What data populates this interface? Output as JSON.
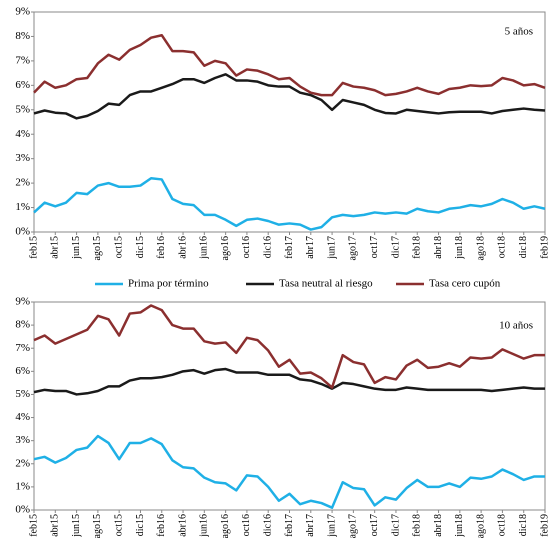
{
  "chart_data": [
    {
      "type": "line",
      "categories": [
        "feb15",
        null,
        "abr15",
        null,
        "jun15",
        null,
        "ago15",
        null,
        "oct15",
        null,
        "dic15",
        null,
        "feb16",
        null,
        "abr16",
        null,
        "jun16",
        null,
        "ago16",
        null,
        "oct16",
        null,
        "dic16",
        null,
        "feb17",
        null,
        "abr17",
        null,
        "jun17",
        null,
        "ago17",
        null,
        "oct17",
        null,
        "dic17",
        null,
        "feb18",
        null,
        "abr18",
        null,
        "jun18",
        null,
        "ago18",
        null,
        "oct18",
        null,
        "dic18",
        null,
        "feb19"
      ],
      "series": [
        {
          "name": "Prima por término",
          "color": "#1fb0e6",
          "values": [
            0.8,
            1.2,
            1.05,
            1.2,
            1.6,
            1.55,
            1.9,
            2.0,
            1.85,
            1.85,
            1.9,
            2.2,
            2.15,
            1.35,
            1.15,
            1.1,
            0.7,
            0.7,
            0.5,
            0.25,
            0.5,
            0.55,
            0.45,
            0.3,
            0.35,
            0.3,
            0.1,
            0.2,
            0.6,
            0.7,
            0.65,
            0.7,
            0.8,
            0.75,
            0.8,
            0.75,
            0.95,
            0.85,
            0.8,
            0.95,
            1.0,
            1.1,
            1.05,
            1.15,
            1.35,
            1.2,
            0.95,
            1.05,
            0.95
          ]
        },
        {
          "name": "Tasa neutral al riesgo",
          "color": "#1a1a1a",
          "values": [
            4.85,
            4.97,
            4.88,
            4.85,
            4.65,
            4.75,
            4.95,
            5.25,
            5.2,
            5.6,
            5.75,
            5.75,
            5.9,
            6.05,
            6.25,
            6.25,
            6.1,
            6.3,
            6.45,
            6.2,
            6.2,
            6.15,
            6.0,
            5.95,
            5.95,
            5.7,
            5.6,
            5.4,
            5.0,
            5.4,
            5.3,
            5.2,
            5.0,
            4.87,
            4.85,
            5.0,
            4.95,
            4.9,
            4.85,
            4.9,
            4.92,
            4.92,
            4.92,
            4.85,
            4.95,
            5.0,
            5.05,
            5.0,
            4.97
          ]
        },
        {
          "name": "Tasa cero cupón",
          "color": "#8b2f2f",
          "values": [
            5.7,
            6.15,
            5.9,
            6.0,
            6.25,
            6.3,
            6.9,
            7.25,
            7.05,
            7.45,
            7.65,
            7.95,
            8.05,
            7.4,
            7.4,
            7.35,
            6.8,
            7.0,
            6.9,
            6.4,
            6.65,
            6.6,
            6.45,
            6.25,
            6.3,
            5.95,
            5.7,
            5.6,
            5.6,
            6.1,
            5.95,
            5.9,
            5.8,
            5.6,
            5.65,
            5.75,
            5.9,
            5.75,
            5.65,
            5.85,
            5.9,
            6.0,
            5.97,
            6.0,
            6.3,
            6.2,
            6.0,
            6.05,
            5.9
          ]
        }
      ],
      "annotation": "5 años",
      "ylim": [
        0,
        9
      ],
      "yticks": [
        {
          "value": 0,
          "label": "0%"
        },
        {
          "value": 1,
          "label": "1%"
        },
        {
          "value": 2,
          "label": "2%"
        },
        {
          "value": 3,
          "label": "3%"
        },
        {
          "value": 4,
          "label": "4%"
        },
        {
          "value": 5,
          "label": "5%"
        },
        {
          "value": 6,
          "label": "6%"
        },
        {
          "value": 7,
          "label": "7%"
        },
        {
          "value": 8,
          "label": "8%"
        },
        {
          "value": 9,
          "label": "9%"
        }
      ],
      "legend": "bottom"
    },
    {
      "type": "line",
      "categories": [
        "feb15",
        null,
        "abr15",
        null,
        "jun15",
        null,
        "ago15",
        null,
        "oct15",
        null,
        "dic15",
        null,
        "feb16",
        null,
        "abr16",
        null,
        "jun16",
        null,
        "ago16",
        null,
        "oct16",
        null,
        "dic16",
        null,
        "feb17",
        null,
        "abr17",
        null,
        "jun17",
        null,
        "ago17",
        null,
        "oct17",
        null,
        "dic17",
        null,
        "feb18",
        null,
        "abr18",
        null,
        "jun18",
        null,
        "ago18",
        null,
        "oct18",
        null,
        "dic18",
        null,
        "feb19"
      ],
      "series": [
        {
          "color": "#1fb0e6",
          "values": [
            2.2,
            2.3,
            2.05,
            2.25,
            2.6,
            2.7,
            3.2,
            2.9,
            2.2,
            2.9,
            2.9,
            3.1,
            2.85,
            2.15,
            1.85,
            1.8,
            1.4,
            1.2,
            1.15,
            0.85,
            1.5,
            1.45,
            1.0,
            0.4,
            0.7,
            0.25,
            0.4,
            0.3,
            0.1,
            1.2,
            0.95,
            0.9,
            0.2,
            0.55,
            0.45,
            0.95,
            1.3,
            1.0,
            1.0,
            1.15,
            1.0,
            1.4,
            1.35,
            1.45,
            1.75,
            1.55,
            1.3,
            1.45,
            1.45
          ]
        },
        {
          "color": "#1a1a1a",
          "values": [
            5.1,
            5.2,
            5.15,
            5.15,
            5.0,
            5.05,
            5.15,
            5.35,
            5.35,
            5.6,
            5.7,
            5.7,
            5.75,
            5.85,
            6.0,
            6.05,
            5.9,
            6.05,
            6.1,
            5.95,
            5.95,
            5.95,
            5.85,
            5.85,
            5.85,
            5.65,
            5.6,
            5.45,
            5.25,
            5.5,
            5.45,
            5.35,
            5.25,
            5.2,
            5.2,
            5.3,
            5.25,
            5.2,
            5.2,
            5.2,
            5.2,
            5.2,
            5.2,
            5.15,
            5.2,
            5.25,
            5.3,
            5.25,
            5.25
          ]
        },
        {
          "color": "#8b2f2f",
          "values": [
            7.35,
            7.55,
            7.2,
            7.4,
            7.6,
            7.8,
            8.4,
            8.25,
            7.55,
            8.5,
            8.55,
            8.85,
            8.65,
            8.0,
            7.85,
            7.85,
            7.3,
            7.2,
            7.25,
            6.8,
            7.45,
            7.35,
            6.9,
            6.2,
            6.5,
            5.9,
            5.95,
            5.7,
            5.3,
            6.7,
            6.4,
            6.3,
            5.5,
            5.75,
            5.65,
            6.25,
            6.5,
            6.15,
            6.2,
            6.35,
            6.2,
            6.6,
            6.55,
            6.6,
            6.95,
            6.75,
            6.55,
            6.7,
            6.7
          ]
        }
      ],
      "annotation": "10 años",
      "ylim": [
        0,
        9
      ],
      "yticks": [
        {
          "value": 0,
          "label": "0%"
        },
        {
          "value": 1,
          "label": "1%"
        },
        {
          "value": 2,
          "label": "2%"
        },
        {
          "value": 3,
          "label": "3%"
        },
        {
          "value": 4,
          "label": "4%"
        },
        {
          "value": 5,
          "label": "5%"
        },
        {
          "value": 6,
          "label": "6%"
        },
        {
          "value": 7,
          "label": "7%"
        },
        {
          "value": 8,
          "label": "8%"
        },
        {
          "value": 9,
          "label": "9%"
        }
      ]
    }
  ]
}
